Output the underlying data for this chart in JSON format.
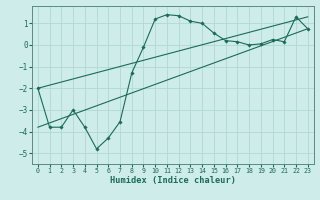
{
  "xlabel": "Humidex (Indice chaleur)",
  "background_color": "#ceecea",
  "line_color": "#1a6b5a",
  "grid_color": "#b0d8d4",
  "spine_color": "#5a8a80",
  "xlim": [
    -0.5,
    23.5
  ],
  "ylim": [
    -5.5,
    1.8
  ],
  "xticks": [
    0,
    1,
    2,
    3,
    4,
    5,
    6,
    7,
    8,
    9,
    10,
    11,
    12,
    13,
    14,
    15,
    16,
    17,
    18,
    19,
    20,
    21,
    22,
    23
  ],
  "yticks": [
    -5,
    -4,
    -3,
    -2,
    -1,
    0,
    1
  ],
  "series1_x": [
    0,
    1,
    2,
    3,
    4,
    5,
    6,
    7,
    8,
    9,
    10,
    11,
    12,
    13,
    14,
    15,
    16,
    17,
    18,
    19,
    20,
    21,
    22,
    23
  ],
  "series1_y": [
    -2.0,
    -3.8,
    -3.8,
    -3.0,
    -3.8,
    -4.8,
    -4.3,
    -3.55,
    -1.3,
    -0.1,
    1.2,
    1.4,
    1.35,
    1.1,
    1.0,
    0.55,
    0.2,
    0.15,
    0.0,
    0.05,
    0.25,
    0.15,
    1.3,
    0.75
  ],
  "series2_x": [
    0,
    23
  ],
  "series2_y": [
    -3.8,
    0.75
  ],
  "series3_x": [
    0,
    23
  ],
  "series3_y": [
    -2.0,
    1.3
  ]
}
